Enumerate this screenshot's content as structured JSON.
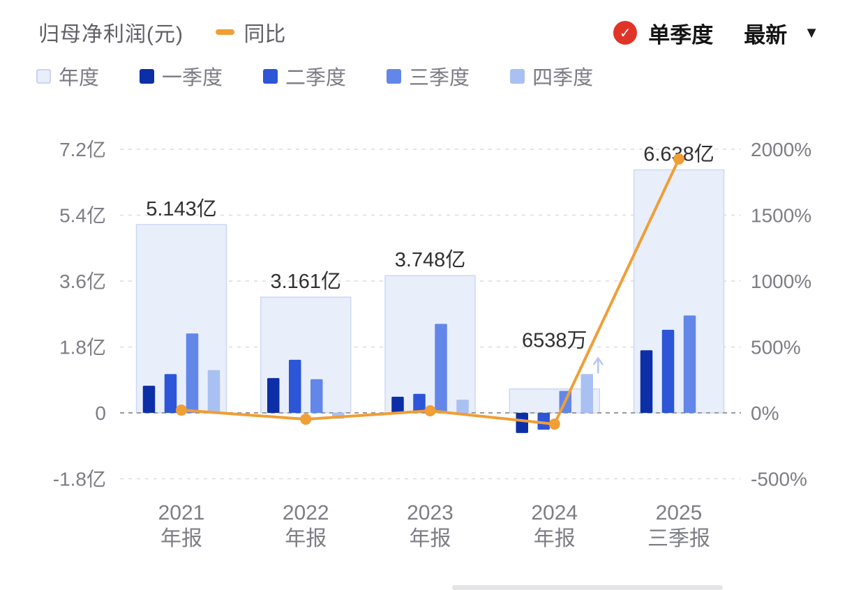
{
  "header": {
    "title": "归母净利润(元)",
    "yoy_label": "同比",
    "mode_label": "单季度",
    "latest_label": "最新",
    "check_icon": "✓",
    "caret_icon": "▼"
  },
  "legend": {
    "items": [
      {
        "label": "年度",
        "color": "#e9eefb",
        "border": "#c7d4f1"
      },
      {
        "label": "一季度",
        "color": "#0c2fa8"
      },
      {
        "label": "二季度",
        "color": "#2c55d8"
      },
      {
        "label": "三季度",
        "color": "#6287e8"
      },
      {
        "label": "四季度",
        "color": "#a9c0f2"
      }
    ]
  },
  "chart_data": {
    "type": "bar",
    "title": "归母净利润(元)",
    "categories": [
      [
        "2021",
        "年报"
      ],
      [
        "2022",
        "年报"
      ],
      [
        "2023",
        "年报"
      ],
      [
        "2024",
        "年报"
      ],
      [
        "2025",
        "三季报"
      ]
    ],
    "annual": {
      "name": "年度",
      "values_yi": [
        5.143,
        3.161,
        3.748,
        0.6538,
        6.638
      ],
      "labels": [
        "5.143亿",
        "3.161亿",
        "3.748亿",
        "6538万",
        "6.638亿"
      ]
    },
    "series": [
      {
        "name": "一季度",
        "values_yi": [
          0.74,
          0.95,
          0.44,
          -0.55,
          1.71
        ]
      },
      {
        "name": "二季度",
        "values_yi": [
          1.06,
          1.45,
          0.52,
          -0.46,
          2.27
        ]
      },
      {
        "name": "三季度",
        "values_yi": [
          2.17,
          0.92,
          2.43,
          0.6,
          2.66
        ]
      },
      {
        "name": "四季度",
        "values_yi": [
          1.17,
          -0.16,
          0.36,
          1.06,
          null
        ]
      }
    ],
    "yoy": {
      "name": "同比",
      "values_pct": [
        21,
        -48,
        16,
        -85,
        1926
      ]
    },
    "left_axis": {
      "unit": "亿",
      "ticks": [
        7.2,
        5.4,
        3.6,
        1.8,
        0,
        -1.8
      ],
      "labels": [
        "7.2亿",
        "5.4亿",
        "3.6亿",
        "1.8亿",
        "0",
        "-1.8亿"
      ]
    },
    "right_axis": {
      "unit": "%",
      "ticks": [
        2000,
        1500,
        1000,
        500,
        0,
        -500
      ],
      "labels": [
        "2000%",
        "1500%",
        "1000%",
        "500%",
        "0%",
        "-500%"
      ]
    },
    "growth_arrow": {
      "group_index": 3,
      "quarter_index": 3
    },
    "legend_position": "top",
    "grid": true,
    "colors": {
      "annual_fill": "#e9eefb",
      "annual_border": "#ccd8f3",
      "q1": "#0c2fa8",
      "q2": "#2c55d8",
      "q3": "#6287e8",
      "q4": "#a9c0f2",
      "yoy_line": "#f09e35",
      "grid": "#dcdcde",
      "zero_line": "#9a9a9e",
      "axis_text": "#7d7d85",
      "annotation_text": "#303030",
      "arrow": "#b5c7f2"
    }
  }
}
